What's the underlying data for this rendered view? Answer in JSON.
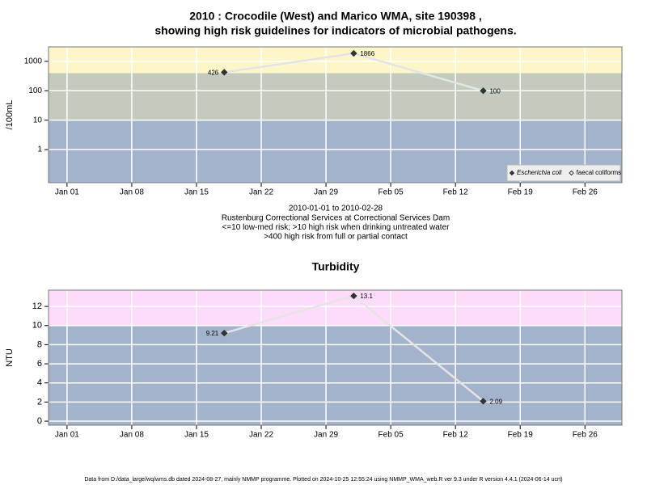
{
  "chart_data": [
    {
      "type": "line",
      "title": [
        "2010 : Crocodile (West) and Marico WMA, site 190398 ,",
        "showing high risk guidelines for indicators of microbial pathogens."
      ],
      "ylabel": "/100mL",
      "notes": [
        "2010-01-01 to 2010-02-28",
        "Rustenburg Correctional Services at Correctional Services Dam",
        "<=10 low-med risk; >10 high risk when drinking untreated water",
        ">400 high risk from full or partial contact"
      ],
      "log": true,
      "x": [
        "2010-01-18",
        "2010-02-01",
        "2010-02-15"
      ],
      "series": [
        {
          "name": "Escherichia coli",
          "font_style": "italic",
          "marker": "filled",
          "color": "#333333",
          "values": [
            426,
            1866,
            100
          ]
        },
        {
          "name": "faecal coliforms",
          "marker": "open",
          "color": "#333333",
          "values": [
            null,
            null,
            null
          ]
        }
      ],
      "line_color": "#e4e4e4",
      "xlim": [
        "2009-12-30",
        "2010-03-02"
      ],
      "xticks": [
        {
          "value": "2010-01-01",
          "label": "Jan 01"
        },
        {
          "value": "2010-01-08",
          "label": "Jan 08"
        },
        {
          "value": "2010-01-15",
          "label": "Jan 15"
        },
        {
          "value": "2010-01-22",
          "label": "Jan 22"
        },
        {
          "value": "2010-01-29",
          "label": "Jan 29"
        },
        {
          "value": "2010-02-05",
          "label": "Feb 05"
        },
        {
          "value": "2010-02-12",
          "label": "Feb 12"
        },
        {
          "value": "2010-02-19",
          "label": "Feb 19"
        },
        {
          "value": "2010-02-26",
          "label": "Feb 26"
        }
      ],
      "ylim": [
        0.075,
        3100
      ],
      "yticks": [
        1,
        10,
        100,
        1000
      ],
      "bands": [
        {
          "from": 0.075,
          "to": 10,
          "color": "#a3b3cc"
        },
        {
          "from": 10,
          "to": 400,
          "color": "#c3cbbf"
        },
        {
          "from": 400,
          "to": 3100,
          "color": "#fdf6c9"
        }
      ],
      "grid": true,
      "legend": "bottom-right"
    },
    {
      "type": "line",
      "title": "Turbidity",
      "ylabel": "NTU",
      "log": false,
      "x": [
        "2010-01-18",
        "2010-02-01",
        "2010-02-15"
      ],
      "values": [
        9.21,
        13.1,
        2.09
      ],
      "color": "#333333",
      "line_color": "#e4e4e4",
      "xlim": [
        "2009-12-30",
        "2010-03-02"
      ],
      "xticks": [
        {
          "value": "2010-01-01",
          "label": "Jan 01"
        },
        {
          "value": "2010-01-08",
          "label": "Jan 08"
        },
        {
          "value": "2010-01-15",
          "label": "Jan 15"
        },
        {
          "value": "2010-01-22",
          "label": "Jan 22"
        },
        {
          "value": "2010-01-29",
          "label": "Jan 29"
        },
        {
          "value": "2010-02-05",
          "label": "Feb 05"
        },
        {
          "value": "2010-02-12",
          "label": "Feb 12"
        },
        {
          "value": "2010-02-19",
          "label": "Feb 19"
        },
        {
          "value": "2010-02-26",
          "label": "Feb 26"
        }
      ],
      "ylim": [
        -0.42,
        13.7
      ],
      "yticks": [
        0,
        2,
        4,
        6,
        8,
        10,
        12
      ],
      "bands": [
        {
          "from": -0.42,
          "to": 10,
          "color": "#a3b3cc"
        },
        {
          "from": 10,
          "to": 13.7,
          "color": "#fcdcfa"
        }
      ],
      "grid": true
    }
  ],
  "footer": "Data from D:/data_large/wq/wms.db dated 2024-08-27, mainly NMMP programme. Plotted on 2024-10-25 12:55:24 using NMMP_WMA_web.R ver 9.3 under R version 4.4.1 (2024-06-14 ucrt)"
}
